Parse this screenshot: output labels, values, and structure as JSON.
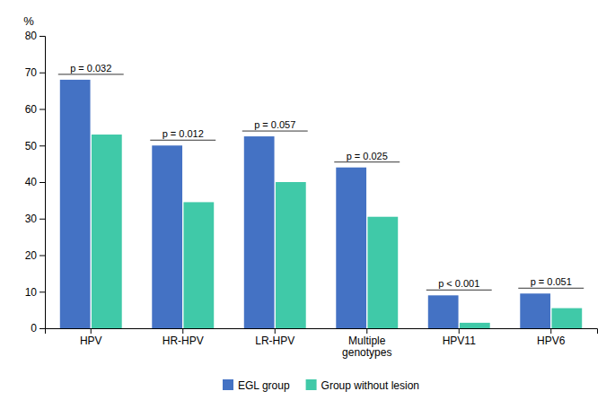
{
  "chart_data": {
    "type": "bar",
    "categories": [
      "HPV",
      "HR-HPV",
      "LR-HPV",
      "Multiple\ngenotypes",
      "HPV11",
      "HPV6"
    ],
    "series": [
      {
        "name": "EGL group",
        "color": "#4472c4",
        "values": [
          68,
          50,
          52.5,
          44,
          9,
          9.5
        ]
      },
      {
        "name": "Group without lesion",
        "color": "#40c9a8",
        "values": [
          53,
          34.5,
          40,
          30.5,
          1.5,
          5.5
        ]
      }
    ],
    "annotations": [
      "p = 0.032",
      "p = 0.012",
      "p = 0.057",
      "p = 0.025",
      "p < 0.001",
      "p = 0.051"
    ],
    "ylabel": "%",
    "ylim": [
      0,
      80
    ],
    "yticks": [
      0,
      10,
      20,
      30,
      40,
      50,
      60,
      70,
      80
    ],
    "grid": false,
    "legend": "bottom"
  }
}
